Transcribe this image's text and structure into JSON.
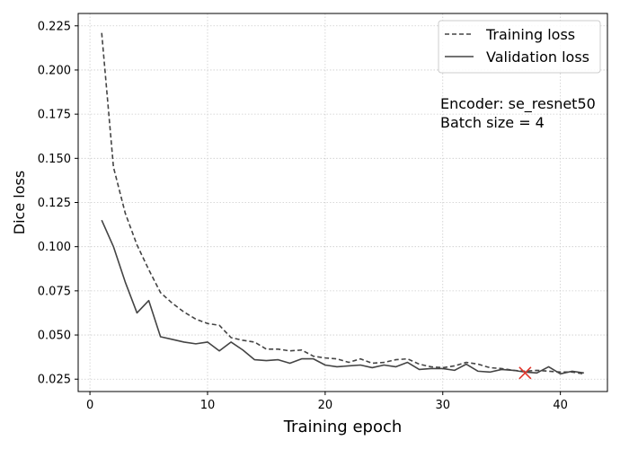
{
  "chart_data": {
    "type": "line",
    "xlabel": "Training epoch",
    "ylabel": "Dice loss",
    "xlim": [
      -1.0,
      44.0
    ],
    "ylim": [
      0.018,
      0.232
    ],
    "xticks": [
      0,
      10,
      20,
      30,
      40
    ],
    "yticks": [
      0.025,
      0.05,
      0.075,
      0.1,
      0.125,
      0.15,
      0.175,
      0.2,
      0.225
    ],
    "xtick_labels": [
      "0",
      "10",
      "20",
      "30",
      "40"
    ],
    "ytick_labels": [
      "0.025",
      "0.050",
      "0.075",
      "0.100",
      "0.125",
      "0.150",
      "0.175",
      "0.200",
      "0.225"
    ],
    "grid": true,
    "legend_position": "top-right",
    "series": [
      {
        "name": "Training loss",
        "style": "dashed",
        "color": "#444444",
        "x": [
          1,
          2,
          3,
          4,
          5,
          6,
          7,
          8,
          9,
          10,
          11,
          12,
          13,
          14,
          15,
          16,
          17,
          18,
          19,
          20,
          21,
          22,
          23,
          24,
          25,
          26,
          27,
          28,
          29,
          30,
          31,
          32,
          33,
          34,
          35,
          36,
          37,
          38,
          39,
          40,
          41,
          42
        ],
        "y": [
          0.221,
          0.145,
          0.119,
          0.101,
          0.087,
          0.074,
          0.068,
          0.063,
          0.059,
          0.0565,
          0.0555,
          0.0485,
          0.047,
          0.046,
          0.042,
          0.042,
          0.041,
          0.0415,
          0.038,
          0.037,
          0.0365,
          0.0345,
          0.0365,
          0.034,
          0.0345,
          0.036,
          0.0365,
          0.0335,
          0.032,
          0.0315,
          0.0325,
          0.0345,
          0.0335,
          0.0315,
          0.031,
          0.03,
          0.0295,
          0.03,
          0.0295,
          0.029,
          0.029,
          0.028
        ]
      },
      {
        "name": "Validation loss",
        "style": "solid",
        "color": "#444444",
        "x": [
          1,
          2,
          3,
          4,
          5,
          6,
          7,
          8,
          9,
          10,
          11,
          12,
          13,
          14,
          15,
          16,
          17,
          18,
          19,
          20,
          21,
          22,
          23,
          24,
          25,
          26,
          27,
          28,
          29,
          30,
          31,
          32,
          33,
          34,
          35,
          36,
          37,
          38,
          39,
          40,
          41,
          42
        ],
        "y": [
          0.115,
          0.1,
          0.08,
          0.0625,
          0.0695,
          0.049,
          0.0475,
          0.046,
          0.045,
          0.046,
          0.041,
          0.046,
          0.0415,
          0.036,
          0.0355,
          0.036,
          0.034,
          0.0365,
          0.0365,
          0.033,
          0.032,
          0.0325,
          0.033,
          0.0315,
          0.033,
          0.032,
          0.0345,
          0.0305,
          0.031,
          0.031,
          0.03,
          0.0335,
          0.0295,
          0.029,
          0.0305,
          0.03,
          0.029,
          0.0285,
          0.032,
          0.028,
          0.0295,
          0.0285
        ]
      }
    ],
    "marker": {
      "x": 37,
      "y": 0.0285,
      "symbol": "x",
      "color": "#e0352b"
    },
    "annotation": [
      "Encoder: se_resnet50",
      "Batch size = 4"
    ]
  }
}
